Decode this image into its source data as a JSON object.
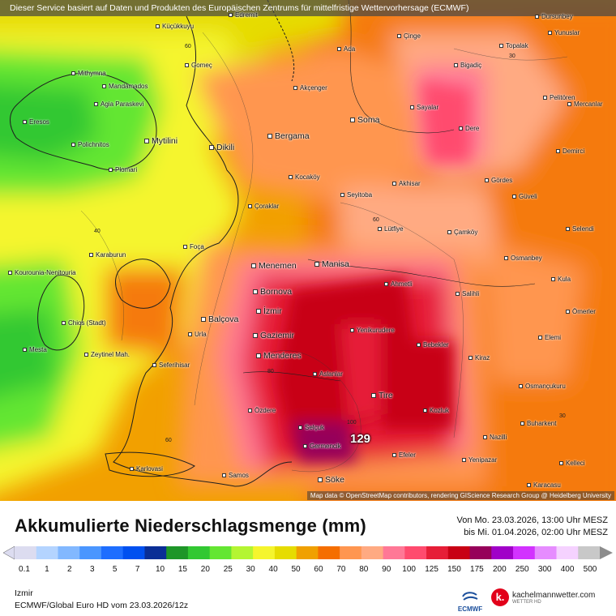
{
  "banner": "Dieser Service basiert auf Daten und Produkten des Europäischen Zentrums für mittelfristige Wettervorhersage (ECMWF)",
  "credit": "Map data © OpenStreetMap contributors, rendering GIScience Research Group @ Heidelberg University",
  "title": "Akkumulierte Niederschlagsmenge (mm)",
  "period_from": "Von Mo. 23.03.2026, 13:00 Uhr MESZ",
  "period_to": "bis Mi. 01.04.2026, 02:00 Uhr MESZ",
  "location": "Izmir",
  "model_run": "ECMWF/Global Euro HD vom  23.03.2026/12z",
  "max_value": "129",
  "logos": {
    "ecmwf": "ECMWF",
    "kachelmann": "kachelmannwetter.com",
    "kachelmann_sub": "WETTER HD",
    "kachelmann_mark": "k."
  },
  "legend": {
    "labels": [
      "0.1",
      "1",
      "2",
      "3",
      "5",
      "7",
      "10",
      "15",
      "20",
      "25",
      "30",
      "40",
      "50",
      "60",
      "70",
      "80",
      "90",
      "100",
      "125",
      "150",
      "175",
      "200",
      "250",
      "300",
      "400",
      "500"
    ],
    "colors": [
      "#dcdcf0",
      "#b4d4ff",
      "#82b8ff",
      "#4a96ff",
      "#1e6eff",
      "#0050f0",
      "#0a2e96",
      "#1e9628",
      "#32c832",
      "#64e632",
      "#b4f532",
      "#f5f52d",
      "#e6dc00",
      "#f0a000",
      "#f56e00",
      "#ff9650",
      "#ffaa82",
      "#ff7896",
      "#ff4b6e",
      "#e61e37",
      "#c80014",
      "#96005a",
      "#a000c8",
      "#d232ff",
      "#e68cff",
      "#f5d2ff",
      "#c8c8c8"
    ]
  },
  "isolabels": [
    "60",
    "40",
    "30",
    "60",
    "80",
    "100",
    "30",
    "60"
  ],
  "cities": [
    {
      "name": "Küçükkuyu",
      "big": false
    },
    {
      "name": "Edremit",
      "big": false
    },
    {
      "name": "Çinge",
      "big": false
    },
    {
      "name": "Dursunbey",
      "big": false
    },
    {
      "name": "Yunuslar",
      "big": false
    },
    {
      "name": "Topalak",
      "big": false
    },
    {
      "name": "Ada",
      "big": false
    },
    {
      "name": "Gomeç",
      "big": false
    },
    {
      "name": "Bigadiç",
      "big": false
    },
    {
      "name": "Mithymna",
      "big": false
    },
    {
      "name": "Mandamados",
      "big": false
    },
    {
      "name": "Akçenger",
      "big": false
    },
    {
      "name": "Agia Paraskevi",
      "big": false
    },
    {
      "name": "Sayalar",
      "big": false
    },
    {
      "name": "Pelitören",
      "big": false
    },
    {
      "name": "Mercanlar",
      "big": false
    },
    {
      "name": "Eresos",
      "big": false
    },
    {
      "name": "Soma",
      "big": true
    },
    {
      "name": "Dere",
      "big": false
    },
    {
      "name": "Mytilini",
      "big": true
    },
    {
      "name": "Bergama",
      "big": true
    },
    {
      "name": "Polichnitos",
      "big": false
    },
    {
      "name": "Dikili",
      "big": true
    },
    {
      "name": "Demirci",
      "big": false
    },
    {
      "name": "Plomari",
      "big": false
    },
    {
      "name": "Kocaköy",
      "big": false
    },
    {
      "name": "Akhisar",
      "big": false
    },
    {
      "name": "Gördes",
      "big": false
    },
    {
      "name": "Seyitoba",
      "big": false
    },
    {
      "name": "Güveli",
      "big": false
    },
    {
      "name": "Çoraklar",
      "big": false
    },
    {
      "name": "Lütfiye",
      "big": false
    },
    {
      "name": "Selendi",
      "big": false
    },
    {
      "name": "Çamköy",
      "big": false
    },
    {
      "name": "Karaburun",
      "big": false
    },
    {
      "name": "Foça",
      "big": false
    },
    {
      "name": "Osmanbey",
      "big": false
    },
    {
      "name": "Kourounia-Nenitouria",
      "big": false
    },
    {
      "name": "Menemen",
      "big": true
    },
    {
      "name": "Manisa",
      "big": true
    },
    {
      "name": "Ahmetli",
      "big": false
    },
    {
      "name": "Kula",
      "big": false
    },
    {
      "name": "Bornova",
      "big": true
    },
    {
      "name": "Salihli",
      "big": false
    },
    {
      "name": "İzmir",
      "big": true
    },
    {
      "name": "Ömerler",
      "big": false
    },
    {
      "name": "Balçova",
      "big": true
    },
    {
      "name": "Chios (Stadt)",
      "big": false
    },
    {
      "name": "Urla",
      "big": false
    },
    {
      "name": "Gaziemir",
      "big": true
    },
    {
      "name": "Yenikurudere",
      "big": false
    },
    {
      "name": "Elemi",
      "big": false
    },
    {
      "name": "Mesta",
      "big": false
    },
    {
      "name": "Zeytinel Mah.",
      "big": false
    },
    {
      "name": "Bebekler",
      "big": false
    },
    {
      "name": "Menderes",
      "big": true
    },
    {
      "name": "Kiraz",
      "big": false
    },
    {
      "name": "Seferihisar",
      "big": false
    },
    {
      "name": "Aslanlar",
      "big": false
    },
    {
      "name": "Osmançukuru",
      "big": false
    },
    {
      "name": "Tire",
      "big": true
    },
    {
      "name": "Özdere",
      "big": false
    },
    {
      "name": "Kozluk",
      "big": false
    },
    {
      "name": "Buharkent",
      "big": false
    },
    {
      "name": "Selçuk",
      "big": false
    },
    {
      "name": "Germencik",
      "big": false
    },
    {
      "name": "Nazilli",
      "big": false
    },
    {
      "name": "Efeler",
      "big": false
    },
    {
      "name": "Yenipazar",
      "big": false
    },
    {
      "name": "Kelleci",
      "big": false
    },
    {
      "name": "Karlovasi",
      "big": false
    },
    {
      "name": "Samos",
      "big": false
    },
    {
      "name": "Söke",
      "big": true
    },
    {
      "name": "Karacasu",
      "big": false
    }
  ]
}
